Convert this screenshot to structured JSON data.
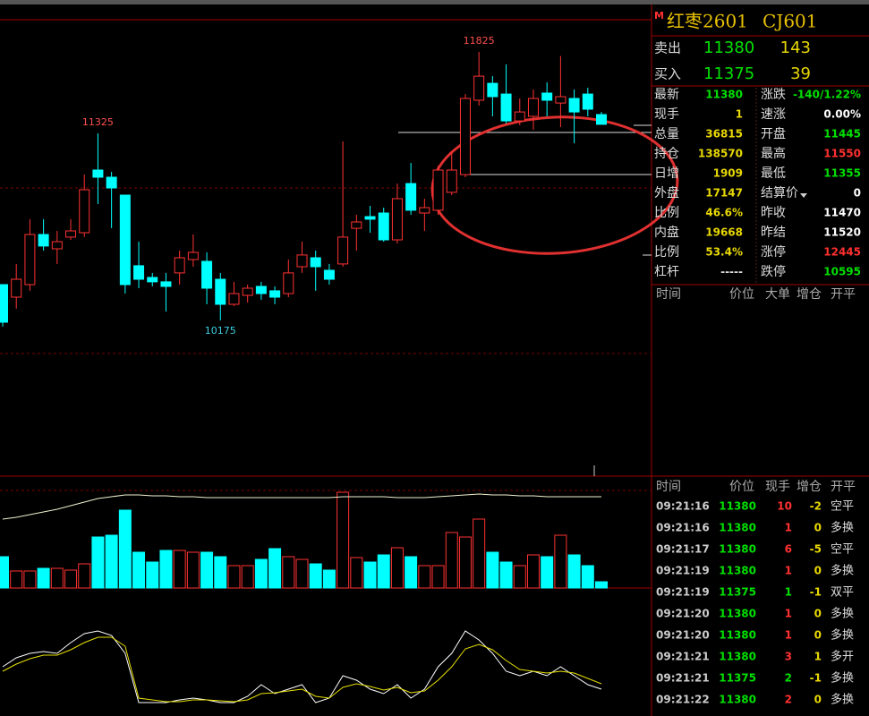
{
  "header": {
    "flag": "M",
    "name": "红枣2601",
    "code": "CJ601"
  },
  "quote": {
    "sell": {
      "label": "卖出",
      "price": 11380,
      "volume": 143
    },
    "buy": {
      "label": "买入",
      "price": 11375,
      "volume": 39
    }
  },
  "stats": [
    {
      "label": "最新",
      "value": 11380,
      "color": "#00e000"
    },
    {
      "label": "现手",
      "value": 1,
      "color": "#e8d800"
    },
    {
      "label": "总量",
      "value": 36815,
      "color": "#e8d800"
    },
    {
      "label": "持仓",
      "value": 138570,
      "color": "#e8d800"
    },
    {
      "label": "日增",
      "value": 1909,
      "color": "#e8d800"
    },
    {
      "label": "外盘",
      "value": 17147,
      "color": "#e8d800"
    },
    {
      "label": "比例",
      "value": "46.6%",
      "color": "#e8d800"
    },
    {
      "label": "内盘",
      "value": 19668,
      "color": "#e8d800"
    },
    {
      "label": "比例",
      "value": "53.4%",
      "color": "#e8d800"
    },
    {
      "label": "杠杆",
      "value": "-----",
      "color": "#dddddd"
    },
    {
      "label": "涨跌",
      "value": "-140/1.22%",
      "color": "#00e000"
    },
    {
      "label": "速涨",
      "value": "0.00%",
      "color": "#ffffff"
    },
    {
      "label": "开盘",
      "value": 11445,
      "color": "#00e000"
    },
    {
      "label": "最高",
      "value": 11550,
      "color": "#ff3030"
    },
    {
      "label": "最低",
      "value": 11355,
      "color": "#00e000"
    },
    {
      "label": "结算价",
      "value": 0,
      "color": "#ffffff"
    },
    {
      "label": "昨收",
      "value": 11470,
      "color": "#ffffff"
    },
    {
      "label": "昨结",
      "value": 11520,
      "color": "#ffffff"
    },
    {
      "label": "涨停",
      "value": 12445,
      "color": "#ff3030"
    },
    {
      "label": "跌停",
      "value": 10595,
      "color": "#00e000"
    }
  ],
  "ticks_header": [
    "时间",
    "价位",
    "大单",
    "增仓",
    "开平"
  ],
  "trades_header": [
    "时间",
    "价位",
    "现手",
    "增仓",
    "开平"
  ],
  "trades": [
    {
      "time": "09:21:16",
      "price": 11380,
      "volume": 10,
      "oi": -2,
      "type": "空平",
      "volume_color": "#ff3030"
    },
    {
      "time": "09:21:16",
      "price": 11380,
      "volume": 1,
      "oi": 0,
      "type": "多换",
      "volume_color": "#ff3030"
    },
    {
      "time": "09:21:17",
      "price": 11380,
      "volume": 6,
      "oi": -5,
      "type": "空平",
      "volume_color": "#ff3030"
    },
    {
      "time": "09:21:19",
      "price": 11380,
      "volume": 1,
      "oi": 0,
      "type": "多换",
      "volume_color": "#ff3030"
    },
    {
      "time": "09:21:19",
      "price": 11375,
      "volume": 1,
      "oi": -1,
      "type": "双平",
      "volume_color": "#00e000"
    },
    {
      "time": "09:21:20",
      "price": 11380,
      "volume": 1,
      "oi": 0,
      "type": "多换",
      "volume_color": "#ff3030"
    },
    {
      "time": "09:21:20",
      "price": 11380,
      "volume": 1,
      "oi": 0,
      "type": "多换",
      "volume_color": "#ff3030"
    },
    {
      "time": "09:21:21",
      "price": 11380,
      "volume": 3,
      "oi": 1,
      "type": "多开",
      "volume_color": "#ff3030"
    },
    {
      "time": "09:21:21",
      "price": 11375,
      "volume": 2,
      "oi": -1,
      "type": "多换",
      "volume_color": "#00e000"
    },
    {
      "time": "09:21:22",
      "price": 11380,
      "volume": 2,
      "oi": 0,
      "type": "多换",
      "volume_color": "#ff3030"
    }
  ],
  "kline": {
    "type": "candlestick",
    "ylim": [
      9229,
      12144
    ],
    "open": [
      10395,
      10318,
      10395,
      10703,
      10615,
      10687,
      10714,
      11099,
      11055,
      10945,
      10511,
      10439,
      10412,
      10467,
      10549,
      10538,
      10428,
      10274,
      10329,
      10384,
      10357,
      10340,
      10505,
      10560,
      10483,
      10522,
      10741,
      10813,
      10835,
      10670,
      11016,
      10835,
      10852,
      10962,
      11071,
      11528,
      11632,
      11566,
      11401,
      11429,
      11572,
      11511,
      11539,
      11566,
      11440
    ],
    "high": [
      10395,
      10522,
      10797,
      10797,
      10725,
      10797,
      11071,
      11325,
      11088,
      10945,
      10659,
      10467,
      10467,
      10604,
      10703,
      10593,
      10467,
      10412,
      10395,
      10412,
      10384,
      10549,
      10659,
      10604,
      10522,
      11275,
      10824,
      10879,
      10868,
      11016,
      11143,
      10923,
      11126,
      11209,
      11566,
      11825,
      11676,
      11748,
      11539,
      11594,
      11638,
      11800,
      11594,
      11605,
      11456
    ],
    "low": [
      10137,
      10247,
      10357,
      10604,
      10522,
      10670,
      10687,
      10890,
      10742,
      10340,
      10373,
      10384,
      10230,
      10395,
      10505,
      10274,
      10175,
      10263,
      10285,
      10302,
      10274,
      10318,
      10467,
      10357,
      10395,
      10505,
      10604,
      10714,
      10659,
      10648,
      10824,
      10725,
      10824,
      10945,
      11055,
      11495,
      11429,
      11385,
      11374,
      11346,
      11429,
      11363,
      11264,
      11429,
      11380
    ],
    "close": [
      10164,
      10428,
      10703,
      10632,
      10659,
      10725,
      10978,
      11055,
      10989,
      10395,
      10428,
      10412,
      10384,
      10560,
      10593,
      10373,
      10274,
      10340,
      10373,
      10340,
      10318,
      10467,
      10577,
      10505,
      10428,
      10687,
      10780,
      10797,
      10670,
      10923,
      10852,
      10868,
      11099,
      11099,
      11539,
      11676,
      11550,
      11401,
      11456,
      11539,
      11528,
      11550,
      11456,
      11473,
      11380
    ]
  },
  "volume": {
    "ylim": [
      0,
      122
    ],
    "values": [
      35,
      19,
      19,
      22,
      22,
      20,
      27,
      57,
      59,
      87,
      40,
      29,
      42,
      42,
      40,
      40,
      35,
      25,
      25,
      32,
      44,
      35,
      32,
      27,
      20,
      107,
      34,
      29,
      37,
      45,
      35,
      25,
      25,
      62,
      57,
      77,
      40,
      29,
      25,
      37,
      35,
      59,
      37,
      25,
      7
    ],
    "ma": [
      77,
      79,
      82,
      85,
      88,
      92,
      96,
      100,
      102,
      104,
      104,
      103,
      103,
      102,
      102,
      101,
      101,
      101,
      101,
      101,
      101,
      101,
      101,
      101,
      101,
      102,
      102,
      102,
      102,
      101,
      101,
      101,
      102,
      103,
      104,
      105,
      104,
      104,
      103,
      103,
      102,
      102,
      102,
      102,
      102
    ]
  },
  "indicator": {
    "ylim": [
      0,
      140
    ],
    "series": [
      {
        "color": "#ffffff",
        "values": [
          55,
          65,
          70,
          72,
          70,
          82,
          92,
          95,
          90,
          70,
          15,
          15,
          15,
          18,
          20,
          18,
          15,
          15,
          22,
          35,
          25,
          30,
          35,
          15,
          20,
          45,
          40,
          30,
          25,
          35,
          20,
          30,
          55,
          70,
          95,
          85,
          70,
          50,
          45,
          50,
          45,
          55,
          45,
          35,
          30
        ]
      },
      {
        "color": "#e8e000",
        "values": [
          50,
          58,
          64,
          68,
          68,
          74,
          82,
          88,
          88,
          78,
          20,
          18,
          16,
          16,
          18,
          18,
          17,
          16,
          18,
          25,
          26,
          28,
          30,
          22,
          20,
          32,
          36,
          33,
          29,
          32,
          26,
          28,
          40,
          55,
          75,
          80,
          74,
          62,
          52,
          50,
          48,
          50,
          48,
          42,
          36
        ]
      }
    ]
  }
}
